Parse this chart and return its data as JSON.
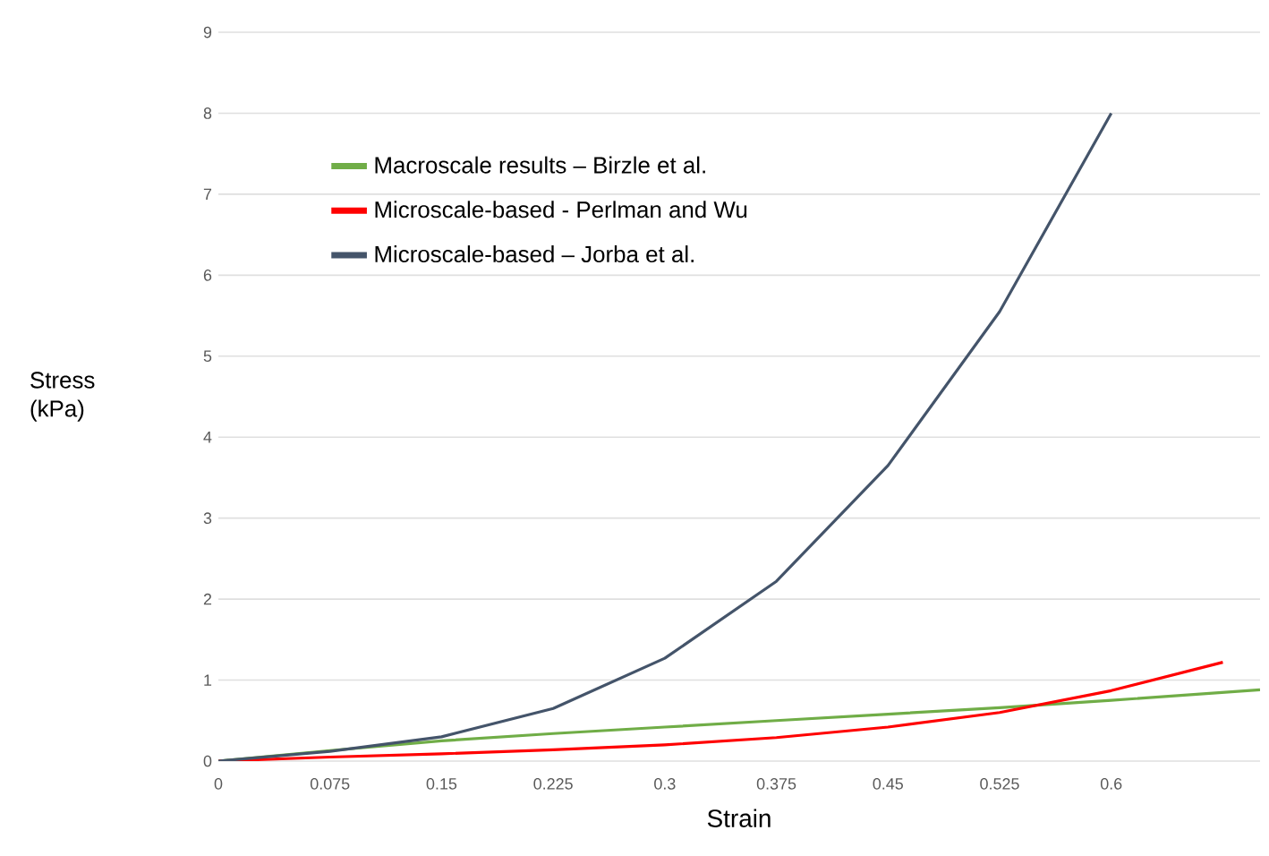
{
  "chart_data": {
    "type": "line",
    "xlabel": "Strain",
    "ylabel": "Stress (kPa)",
    "xlim": [
      0,
      0.7
    ],
    "xticks": [
      0,
      0.075,
      0.15,
      0.225,
      0.3,
      0.375,
      0.45,
      0.525,
      0.6
    ],
    "ylim": [
      0,
      9
    ],
    "yticks": [
      0,
      1,
      2,
      3,
      4,
      5,
      6,
      7,
      8,
      9
    ],
    "grid": "y",
    "legend": "top left",
    "marker": "none",
    "line_style": "solid",
    "series": [
      {
        "name": "Macroscale results – Birzle et al.",
        "color": "#70ad47",
        "x": [
          0,
          0.075,
          0.15,
          0.225,
          0.3,
          0.375,
          0.45,
          0.525,
          0.6,
          0.7
        ],
        "values": [
          0,
          0.13,
          0.25,
          0.34,
          0.42,
          0.5,
          0.58,
          0.66,
          0.75,
          0.88
        ]
      },
      {
        "name": "Microscale-based - Perlman and Wu",
        "color": "#ff0000",
        "x": [
          0,
          0.075,
          0.15,
          0.225,
          0.3,
          0.375,
          0.45,
          0.525,
          0.6,
          0.675
        ],
        "values": [
          0,
          0.05,
          0.09,
          0.14,
          0.2,
          0.29,
          0.42,
          0.6,
          0.87,
          1.22
        ]
      },
      {
        "name": "Microscale-based – Jorba et al.",
        "color": "#44546a",
        "x": [
          0,
          0.075,
          0.15,
          0.225,
          0.3,
          0.375,
          0.45,
          0.525,
          0.6
        ],
        "values": [
          0,
          0.12,
          0.3,
          0.65,
          1.27,
          2.22,
          3.65,
          5.55,
          8.0
        ]
      }
    ]
  }
}
